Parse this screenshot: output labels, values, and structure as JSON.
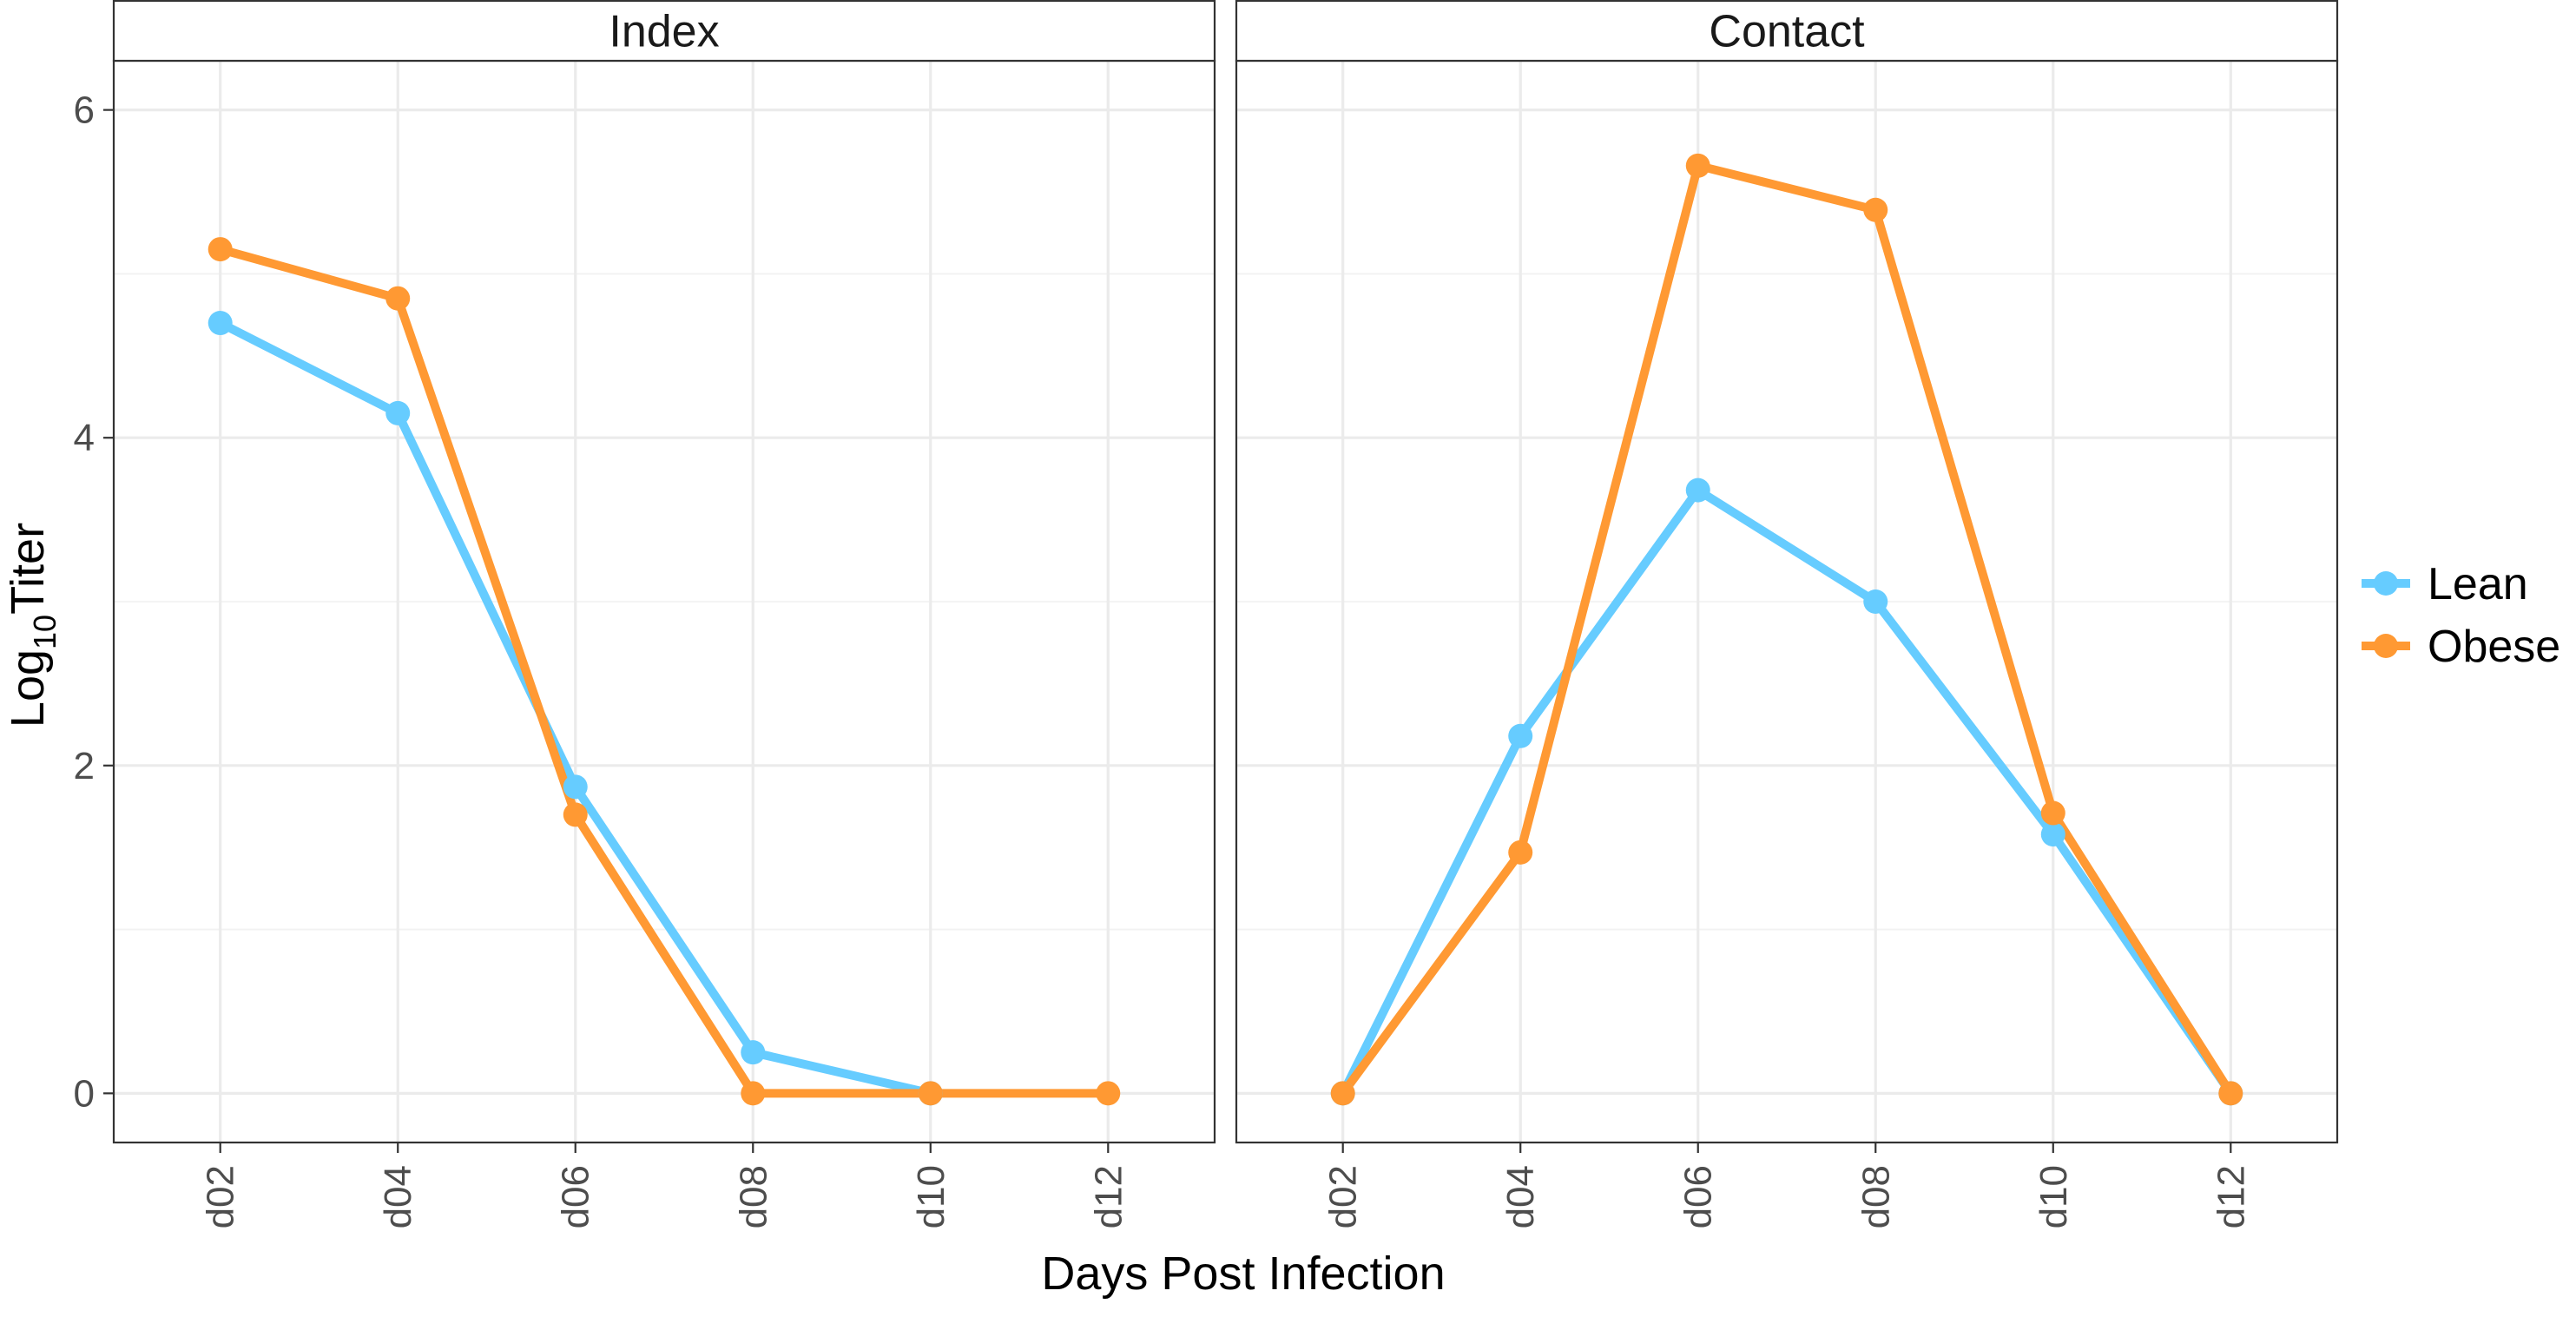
{
  "chart_data": {
    "type": "line",
    "xlabel": "Days Post Infection",
    "ylabel": {
      "base": "Log",
      "subscript": "10",
      "rest": "Titer"
    },
    "categories": [
      "d02",
      "d04",
      "d06",
      "d08",
      "d10",
      "d12"
    ],
    "ylim": [
      -0.3,
      6.3
    ],
    "yticks": [
      0,
      2,
      4,
      6
    ],
    "grid": true,
    "legend": {
      "placement": "right",
      "entries": [
        {
          "name": "Lean",
          "color": "#66ccff"
        },
        {
          "name": "Obese",
          "color": "#ff9933"
        }
      ]
    },
    "panels": [
      {
        "title": "Index",
        "series": [
          {
            "name": "Lean",
            "color": "#66ccff",
            "values": [
              4.7,
              4.15,
              1.87,
              0.25,
              0.0,
              null
            ]
          },
          {
            "name": "Obese",
            "color": "#ff9933",
            "values": [
              5.15,
              4.85,
              1.7,
              0.0,
              0.0,
              0.0
            ]
          }
        ]
      },
      {
        "title": "Contact",
        "series": [
          {
            "name": "Lean",
            "color": "#66ccff",
            "values": [
              0.0,
              2.18,
              3.68,
              3.0,
              1.58,
              0.0
            ]
          },
          {
            "name": "Obese",
            "color": "#ff9933",
            "values": [
              0.0,
              1.47,
              5.66,
              5.39,
              1.71,
              0.0
            ]
          }
        ]
      }
    ]
  }
}
